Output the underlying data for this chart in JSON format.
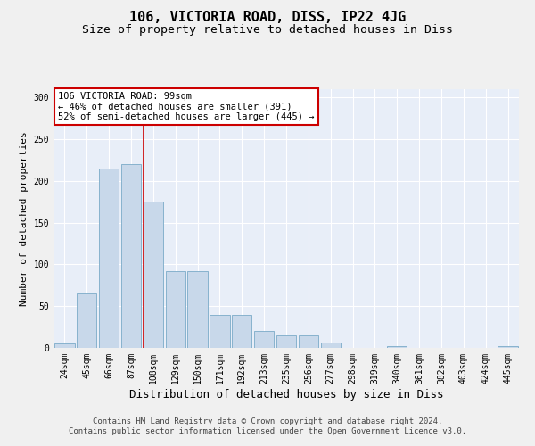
{
  "title": "106, VICTORIA ROAD, DISS, IP22 4JG",
  "subtitle": "Size of property relative to detached houses in Diss",
  "xlabel": "Distribution of detached houses by size in Diss",
  "ylabel": "Number of detached properties",
  "categories": [
    "24sqm",
    "45sqm",
    "66sqm",
    "87sqm",
    "108sqm",
    "129sqm",
    "150sqm",
    "171sqm",
    "192sqm",
    "213sqm",
    "235sqm",
    "256sqm",
    "277sqm",
    "298sqm",
    "319sqm",
    "340sqm",
    "361sqm",
    "382sqm",
    "403sqm",
    "424sqm",
    "445sqm"
  ],
  "values": [
    5,
    65,
    215,
    220,
    175,
    92,
    92,
    40,
    40,
    20,
    15,
    15,
    6,
    0,
    0,
    2,
    0,
    0,
    0,
    0,
    2
  ],
  "bar_color": "#c8d8ea",
  "bar_edge_color": "#7aaac8",
  "bg_color": "#e8eef8",
  "grid_color": "#ffffff",
  "annotation_text": "106 VICTORIA ROAD: 99sqm\n← 46% of detached houses are smaller (391)\n52% of semi-detached houses are larger (445) →",
  "annotation_box_color": "#ffffff",
  "annotation_box_edge": "#cc0000",
  "vline_color": "#cc0000",
  "vline_x": 3.57,
  "ylim": [
    0,
    310
  ],
  "yticks": [
    0,
    50,
    100,
    150,
    200,
    250,
    300
  ],
  "footer_line1": "Contains HM Land Registry data © Crown copyright and database right 2024.",
  "footer_line2": "Contains public sector information licensed under the Open Government Licence v3.0.",
  "fig_facecolor": "#f0f0f0",
  "title_fontsize": 11,
  "subtitle_fontsize": 9.5,
  "xlabel_fontsize": 9,
  "ylabel_fontsize": 8,
  "tick_fontsize": 7,
  "annot_fontsize": 7.5,
  "footer_fontsize": 6.5
}
